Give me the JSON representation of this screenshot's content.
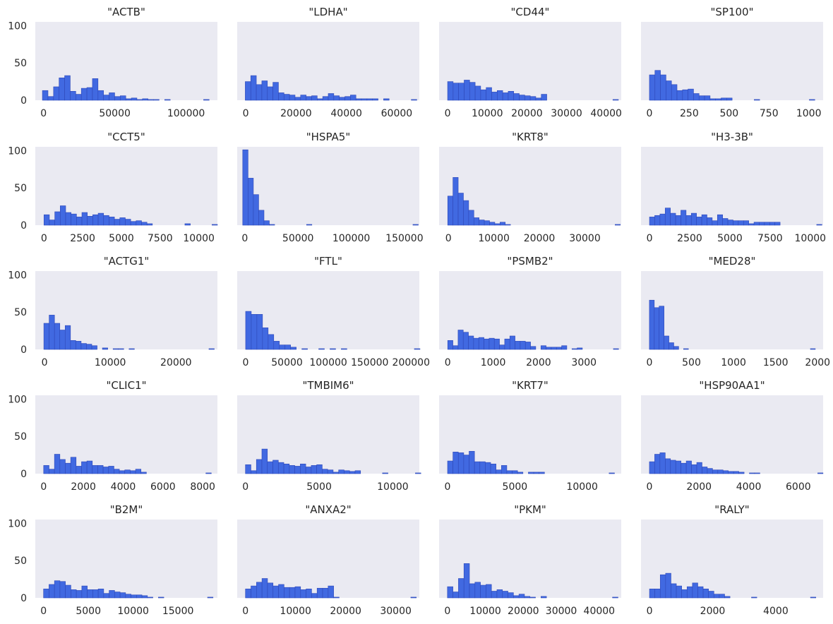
{
  "chart_data": [
    {
      "type": "bar",
      "title": "\"ACTB\"",
      "ylim": [
        0,
        105
      ],
      "yticks": [
        0,
        50,
        100
      ],
      "xlim": [
        -5800,
        122000
      ],
      "xticks": [
        0,
        50000,
        100000
      ],
      "xtick_labels": [
        "0",
        "50000",
        "100000"
      ],
      "bins": {
        "start": -800,
        "width": 3900,
        "counts": [
          13,
          5,
          18,
          30,
          33,
          12,
          8,
          16,
          17,
          29,
          13,
          7,
          10,
          5,
          6,
          2,
          3,
          1,
          2,
          1,
          1,
          0,
          1,
          0,
          0,
          0,
          0,
          0,
          0,
          1
        ]
      }
    },
    {
      "type": "bar",
      "title": "\"LDHA\"",
      "ylim": [
        0,
        105
      ],
      "yticks": [
        0,
        50,
        100
      ],
      "xlim": [
        -3400,
        69000
      ],
      "xticks": [
        0,
        20000,
        40000,
        60000
      ],
      "xtick_labels": [
        "0",
        "20000",
        "40000",
        "60000"
      ],
      "bins": {
        "start": -200,
        "width": 2200,
        "counts": [
          25,
          33,
          21,
          26,
          18,
          24,
          10,
          8,
          7,
          4,
          7,
          5,
          6,
          2,
          5,
          9,
          6,
          4,
          5,
          7,
          2,
          2,
          2,
          2,
          0,
          2,
          0,
          0,
          0,
          0,
          1
        ]
      }
    },
    {
      "type": "bar",
      "title": "\"CD44\"",
      "ylim": [
        0,
        105
      ],
      "yticks": [
        0,
        50,
        100
      ],
      "xlim": [
        -2150,
        43800
      ],
      "xticks": [
        0,
        10000,
        20000,
        30000,
        40000
      ],
      "xtick_labels": [
        "0",
        "10000",
        "20000",
        "30000",
        "40000"
      ],
      "bins": {
        "start": 0,
        "width": 1390,
        "counts": [
          25,
          23,
          23,
          27,
          24,
          19,
          14,
          17,
          11,
          13,
          10,
          12,
          9,
          7,
          6,
          5,
          3,
          8,
          0,
          0,
          0,
          0,
          0,
          0,
          0,
          0,
          0,
          0,
          0,
          0,
          1
        ]
      }
    },
    {
      "type": "bar",
      "title": "\"SP100\"",
      "ylim": [
        0,
        105
      ],
      "yticks": [
        0,
        50,
        100
      ],
      "xlim": [
        -53,
        1090
      ],
      "xticks": [
        0,
        250,
        500,
        750,
        1000
      ],
      "xtick_labels": [
        "0",
        "250",
        "500",
        "750",
        "1000"
      ],
      "bins": {
        "start": 0,
        "width": 34.6,
        "counts": [
          34,
          40,
          34,
          26,
          21,
          13,
          14,
          15,
          9,
          6,
          6,
          2,
          2,
          3,
          3,
          0,
          0,
          0,
          0,
          1,
          0,
          0,
          0,
          0,
          0,
          0,
          0,
          0,
          0,
          1
        ]
      }
    },
    {
      "type": "bar",
      "title": "\"CCT5\"",
      "ylim": [
        0,
        105
      ],
      "yticks": [
        0,
        50,
        100
      ],
      "xlim": [
        -560,
        11200
      ],
      "xticks": [
        0,
        2500,
        5000,
        7500,
        10000
      ],
      "xtick_labels": [
        "0",
        "2500",
        "5000",
        "7500",
        "10000"
      ],
      "bins": {
        "start": 0,
        "width": 350,
        "counts": [
          14,
          7,
          18,
          26,
          17,
          15,
          11,
          17,
          12,
          14,
          16,
          13,
          11,
          8,
          10,
          8,
          5,
          6,
          4,
          2,
          0,
          0,
          0,
          0,
          0,
          0,
          2,
          0,
          0,
          0,
          0,
          1
        ]
      }
    },
    {
      "type": "bar",
      "title": "\"HSPA5\"",
      "ylim": [
        0,
        105
      ],
      "yticks": [
        0,
        50,
        100
      ],
      "xlim": [
        -7200,
        164000
      ],
      "xticks": [
        0,
        50000,
        100000,
        150000
      ],
      "xtick_labels": [
        "0",
        "50000",
        "100000",
        "150000"
      ],
      "bins": {
        "start": -2000,
        "width": 5000,
        "counts": [
          101,
          63,
          41,
          20,
          6,
          1,
          0,
          0,
          0,
          0,
          0,
          0,
          1,
          0,
          0,
          0,
          0,
          0,
          0,
          0,
          0,
          0,
          0,
          0,
          0,
          0,
          0,
          0,
          0,
          0,
          0,
          0,
          1
        ]
      }
    },
    {
      "type": "bar",
      "title": "\"KRT8\"",
      "ylim": [
        0,
        105
      ],
      "yticks": [
        0,
        50,
        100
      ],
      "xlim": [
        -2050,
        38000
      ],
      "xticks": [
        0,
        10000,
        20000,
        30000
      ],
      "xtick_labels": [
        "0",
        "10000",
        "20000",
        "30000"
      ],
      "bins": {
        "start": -150,
        "width": 1150,
        "counts": [
          39,
          64,
          43,
          33,
          20,
          10,
          7,
          6,
          4,
          2,
          4,
          1,
          0,
          0,
          0,
          0,
          0,
          0,
          0,
          0,
          0,
          0,
          0,
          0,
          0,
          0,
          0,
          0,
          0,
          0,
          0,
          0,
          1
        ]
      }
    },
    {
      "type": "bar",
      "title": "\"H3-3B\"",
      "ylim": [
        0,
        105
      ],
      "yticks": [
        0,
        50,
        100
      ],
      "xlim": [
        -530,
        10800
      ],
      "xticks": [
        0,
        2500,
        5000,
        7500,
        10000
      ],
      "xtick_labels": [
        "0",
        "2500",
        "5000",
        "7500",
        "10000"
      ],
      "bins": {
        "start": 0,
        "width": 325,
        "counts": [
          11,
          13,
          15,
          23,
          16,
          13,
          20,
          13,
          16,
          11,
          14,
          10,
          6,
          14,
          9,
          7,
          6,
          6,
          6,
          2,
          4,
          4,
          4,
          4,
          4,
          0,
          0,
          0,
          0,
          0,
          0,
          0,
          1
        ]
      }
    },
    {
      "type": "bar",
      "title": "\"ACTG1\"",
      "ylim": [
        0,
        105
      ],
      "yticks": [
        0,
        50,
        100
      ],
      "xlim": [
        -1400,
        26300
      ],
      "xticks": [
        0,
        10000,
        20000
      ],
      "xtick_labels": [
        "0",
        "10000",
        "20000"
      ],
      "bins": {
        "start": -100,
        "width": 810,
        "counts": [
          35,
          46,
          35,
          26,
          32,
          12,
          11,
          8,
          7,
          5,
          0,
          2,
          0,
          1,
          1,
          0,
          1,
          0,
          0,
          0,
          0,
          0,
          0,
          0,
          0,
          0,
          0,
          0,
          0,
          0,
          0,
          1
        ]
      }
    },
    {
      "type": "bar",
      "title": "\"FTL\"",
      "ylim": [
        0,
        105
      ],
      "yticks": [
        0,
        50,
        100
      ],
      "xlim": [
        -10200,
        210000
      ],
      "xticks": [
        0,
        50000,
        100000,
        150000,
        200000
      ],
      "xtick_labels": [
        "0",
        "50000",
        "100000",
        "150000",
        "200000"
      ],
      "bins": {
        "start": 0,
        "width": 6800,
        "counts": [
          51,
          47,
          47,
          29,
          20,
          11,
          6,
          6,
          3,
          0,
          1,
          0,
          0,
          1,
          0,
          1,
          0,
          1,
          0,
          0,
          0,
          0,
          0,
          0,
          0,
          0,
          0,
          0,
          0,
          0,
          1
        ]
      }
    },
    {
      "type": "bar",
      "title": "\"PSMB2\"",
      "ylim": [
        0,
        105
      ],
      "yticks": [
        0,
        50,
        100
      ],
      "xlim": [
        -190,
        3820
      ],
      "xticks": [
        0,
        1000,
        2000,
        3000
      ],
      "xtick_labels": [
        "0",
        "1000",
        "2000",
        "3000"
      ],
      "bins": {
        "start": 0,
        "width": 114,
        "counts": [
          12,
          5,
          26,
          23,
          18,
          15,
          16,
          14,
          15,
          14,
          6,
          14,
          18,
          11,
          11,
          10,
          4,
          0,
          5,
          3,
          3,
          3,
          5,
          0,
          1,
          2,
          0,
          0,
          0,
          0,
          0,
          0,
          1
        ]
      }
    },
    {
      "type": "bar",
      "title": "\"MED28\"",
      "ylim": [
        0,
        105
      ],
      "yticks": [
        0,
        50,
        100
      ],
      "xlim": [
        -100,
        2065
      ],
      "xticks": [
        0,
        500,
        1000,
        1500,
        2000
      ],
      "xtick_labels": [
        "0",
        "500",
        "1000",
        "1500",
        "2000"
      ],
      "bins": {
        "start": 0,
        "width": 58,
        "counts": [
          66,
          56,
          58,
          18,
          9,
          4,
          0,
          1,
          0,
          0,
          0,
          0,
          0,
          0,
          0,
          0,
          0,
          0,
          0,
          0,
          0,
          0,
          0,
          0,
          0,
          0,
          0,
          0,
          0,
          0,
          0,
          0,
          0,
          1
        ]
      }
    },
    {
      "type": "bar",
      "title": "\"CLIC1\"",
      "ylim": [
        0,
        105
      ],
      "yticks": [
        0,
        50,
        100
      ],
      "xlim": [
        -420,
        8740
      ],
      "xticks": [
        0,
        2000,
        4000,
        6000,
        8000
      ],
      "xtick_labels": [
        "0",
        "2000",
        "4000",
        "6000",
        "8000"
      ],
      "bins": {
        "start": 0,
        "width": 272,
        "counts": [
          11,
          6,
          26,
          19,
          14,
          22,
          10,
          16,
          17,
          11,
          11,
          9,
          10,
          6,
          4,
          5,
          4,
          6,
          2,
          0,
          0,
          0,
          0,
          0,
          0,
          0,
          0,
          0,
          0,
          0,
          1
        ]
      }
    },
    {
      "type": "bar",
      "title": "\"TMBIM6\"",
      "ylim": [
        0,
        105
      ],
      "yticks": [
        0,
        50,
        100
      ],
      "xlim": [
        -560,
        11800
      ],
      "xticks": [
        0,
        5000,
        10000
      ],
      "xtick_labels": [
        "0",
        "5000",
        "10000"
      ],
      "bins": {
        "start": 0,
        "width": 372,
        "counts": [
          12,
          4,
          19,
          33,
          16,
          18,
          15,
          13,
          11,
          10,
          13,
          9,
          11,
          12,
          6,
          5,
          2,
          5,
          4,
          3,
          4,
          0,
          0,
          0,
          0,
          1,
          0,
          0,
          0,
          0,
          0,
          1
        ]
      }
    },
    {
      "type": "bar",
      "title": "\"KRT7\"",
      "ylim": [
        0,
        105
      ],
      "yticks": [
        0,
        50,
        100
      ],
      "xlim": [
        -630,
        12900
      ],
      "xticks": [
        0,
        5000,
        10000
      ],
      "xtick_labels": [
        "0",
        "5000",
        "10000"
      ],
      "bins": {
        "start": 0,
        "width": 400,
        "counts": [
          17,
          29,
          28,
          25,
          30,
          16,
          16,
          15,
          13,
          5,
          11,
          4,
          4,
          2,
          0,
          2,
          2,
          2,
          0,
          0,
          0,
          0,
          0,
          0,
          0,
          0,
          0,
          0,
          0,
          0,
          1
        ]
      }
    },
    {
      "type": "bar",
      "title": "\"HSP90AA1\"",
      "ylim": [
        0,
        105
      ],
      "yticks": [
        0,
        50,
        100
      ],
      "xlim": [
        -340,
        7000
      ],
      "xticks": [
        0,
        2000,
        4000,
        6000
      ],
      "xtick_labels": [
        "0",
        "2000",
        "4000",
        "6000"
      ],
      "bins": {
        "start": 0,
        "width": 212,
        "counts": [
          16,
          26,
          28,
          20,
          18,
          17,
          14,
          17,
          12,
          15,
          9,
          7,
          5,
          5,
          4,
          3,
          3,
          2,
          0,
          1,
          1,
          0,
          0,
          0,
          0,
          0,
          0,
          0,
          0,
          0,
          0,
          0,
          1
        ]
      }
    },
    {
      "type": "bar",
      "title": "\"B2M\"",
      "ylim": [
        0,
        105
      ],
      "yticks": [
        0,
        50,
        100
      ],
      "xlim": [
        -920,
        19400
      ],
      "xticks": [
        0,
        5000,
        10000,
        15000
      ],
      "xtick_labels": [
        "0",
        "5000",
        "10000",
        "15000"
      ],
      "bins": {
        "start": 0,
        "width": 610,
        "counts": [
          12,
          18,
          23,
          22,
          17,
          11,
          10,
          16,
          11,
          11,
          12,
          6,
          10,
          8,
          7,
          5,
          4,
          4,
          3,
          1,
          0,
          1,
          0,
          0,
          0,
          0,
          0,
          0,
          0,
          0,
          1
        ]
      }
    },
    {
      "type": "bar",
      "title": "\"ANXA2\"",
      "ylim": [
        0,
        105
      ],
      "yticks": [
        0,
        50,
        100
      ],
      "xlim": [
        -1650,
        34700
      ],
      "xticks": [
        0,
        10000,
        20000,
        30000
      ],
      "xtick_labels": [
        "0",
        "10000",
        "20000",
        "30000"
      ],
      "bins": {
        "start": 0,
        "width": 1100,
        "counts": [
          12,
          16,
          21,
          26,
          20,
          16,
          18,
          14,
          14,
          15,
          11,
          12,
          6,
          13,
          13,
          16,
          1,
          0,
          0,
          0,
          0,
          0,
          0,
          0,
          0,
          0,
          0,
          0,
          0,
          0,
          1
        ]
      }
    },
    {
      "type": "bar",
      "title": "\"PKM\"",
      "ylim": [
        0,
        105
      ],
      "yticks": [
        0,
        50,
        100
      ],
      "xlim": [
        -2200,
        45800
      ],
      "xticks": [
        0,
        10000,
        20000,
        30000,
        40000
      ],
      "xtick_labels": [
        "0",
        "10000",
        "20000",
        "30000",
        "40000"
      ],
      "bins": {
        "start": 0,
        "width": 1450,
        "counts": [
          15,
          8,
          26,
          46,
          19,
          21,
          17,
          18,
          9,
          11,
          9,
          7,
          3,
          5,
          2,
          1,
          0,
          2,
          0,
          0,
          0,
          0,
          0,
          0,
          0,
          0,
          0,
          0,
          0,
          0,
          1
        ]
      }
    },
    {
      "type": "bar",
      "title": "\"RALY\"",
      "ylim": [
        0,
        105
      ],
      "yticks": [
        0,
        50,
        100
      ],
      "xlim": [
        -270,
        5500
      ],
      "xticks": [
        0,
        2000,
        4000
      ],
      "xtick_labels": [
        "0",
        "2000",
        "4000"
      ],
      "bins": {
        "start": 0,
        "width": 170,
        "counts": [
          12,
          12,
          31,
          33,
          19,
          16,
          11,
          15,
          20,
          15,
          12,
          9,
          5,
          5,
          2,
          0,
          0,
          0,
          0,
          1,
          0,
          0,
          0,
          0,
          0,
          0,
          0,
          0,
          0,
          0,
          1
        ]
      }
    }
  ],
  "style": {
    "bar_color": "#4169E1",
    "bar_edge": "#2E48B8",
    "plot_bg": "#EAEAF2",
    "text_color": "#262626",
    "grid": false
  }
}
